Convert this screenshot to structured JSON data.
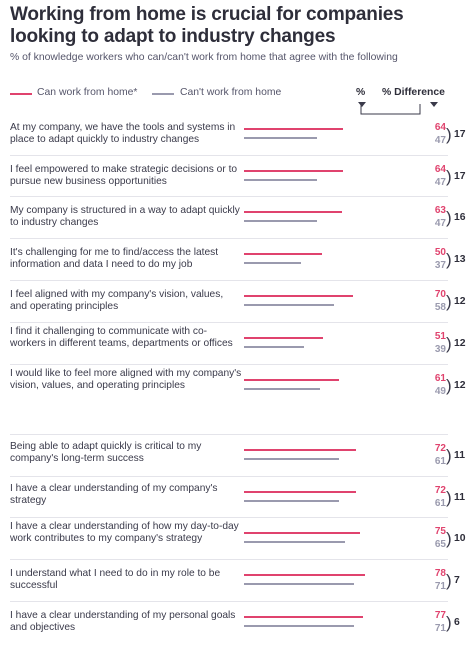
{
  "chart_data": {
    "type": "bar",
    "title": "Working from home is crucial for companies looking to adapt to industry changes",
    "subtitle": "% of knowledge workers who can/can't work from home that agree with the following",
    "column_headers": {
      "percent": "%",
      "difference": "% Difference"
    },
    "colors": {
      "can": "#e0436e",
      "cannot": "#9a9aae"
    },
    "series": [
      {
        "name": "Can work from home*",
        "values": [
          64,
          64,
          63,
          50,
          70,
          51,
          61,
          72,
          72,
          75,
          78,
          77
        ]
      },
      {
        "name": "Can't work from home",
        "values": [
          47,
          47,
          47,
          37,
          58,
          39,
          49,
          61,
          61,
          65,
          71,
          71
        ]
      }
    ],
    "categories": [
      "At my company, we have the tools and systems in place to adapt quickly to industry changes",
      "I feel empowered to make strategic decisions or to pursue new business opportunities",
      "My company is structured in a way to adapt quickly to industry changes",
      "It's challenging for me to find/access the latest information and data I need to do my job",
      "I feel aligned with my company's vision, values, and operating principles",
      "I find it challenging to communicate with co-workers in different teams, departments or offices",
      "I would like to feel more aligned with my company's vision, values, and operating principles",
      "Being able to adapt quickly is critical to my company's long-term success",
      "I have a clear understanding of my company's strategy",
      "I have a clear understanding of how my day-to-day work contributes to my company's strategy",
      "I understand what I need to do in my role to be successful",
      "I have a clear understanding of my personal goals and objectives"
    ],
    "differences": [
      17,
      17,
      16,
      13,
      12,
      12,
      12,
      11,
      11,
      10,
      7,
      6
    ],
    "xlim": [
      0,
      100
    ],
    "grid": false,
    "legend_position": "top-left"
  }
}
